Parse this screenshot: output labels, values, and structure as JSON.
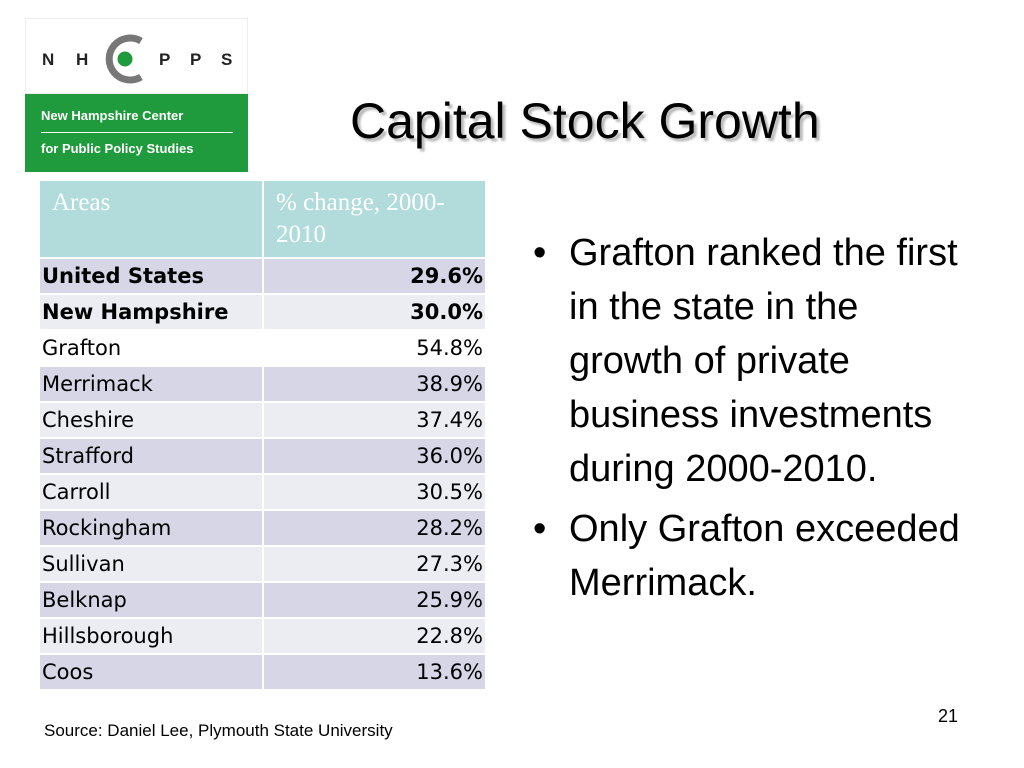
{
  "logo": {
    "letters": [
      "N",
      "H",
      "P",
      "P",
      "S"
    ],
    "line1": "New Hampshire Center",
    "line2": "for Public Policy Studies",
    "colors": {
      "green": "#1f9a3c",
      "ring": "#777777"
    }
  },
  "title": "Capital Stock Growth",
  "table": {
    "headers": [
      "Areas",
      "% change, 2000-2010"
    ],
    "rows": [
      {
        "area": "United States",
        "change": "29.6%"
      },
      {
        "area": "New Hampshire",
        "change": "30.0%"
      },
      {
        "area": "Grafton",
        "change": "54.8%"
      },
      {
        "area": "Merrimack",
        "change": "38.9%"
      },
      {
        "area": "Cheshire",
        "change": "37.4%"
      },
      {
        "area": "Strafford",
        "change": "36.0%"
      },
      {
        "area": "Carroll",
        "change": "30.5%"
      },
      {
        "area": "Rockingham",
        "change": "28.2%"
      },
      {
        "area": "Sullivan",
        "change": "27.3%"
      },
      {
        "area": "Belknap",
        "change": "25.9%"
      },
      {
        "area": "Hillsborough",
        "change": "22.8%"
      },
      {
        "area": "Coos",
        "change": "13.6%"
      }
    ],
    "colors": {
      "header": "#b2dcdc",
      "band_dark": "#d6d6e6",
      "band_light": "#ececf3"
    }
  },
  "bullets": [
    "Grafton ranked the first in the state in the growth of private business investments during 2000-2010.",
    "Only Grafton exceeded Merrimack."
  ],
  "source": "Source:  Daniel Lee, Plymouth State University",
  "page_number": "21"
}
